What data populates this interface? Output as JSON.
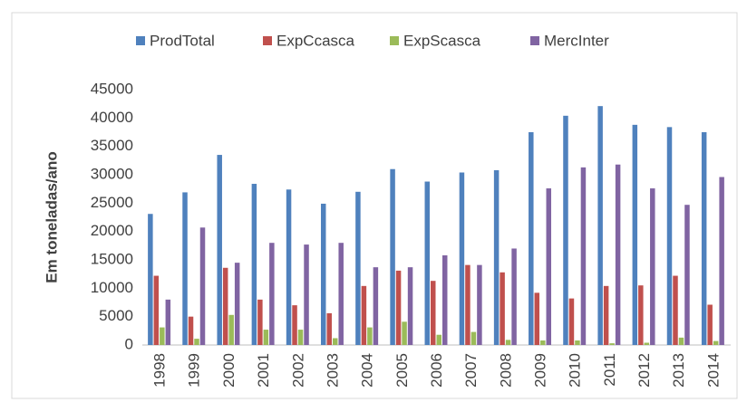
{
  "chart_data": {
    "type": "bar",
    "y_label": "Em toneladas/ano",
    "categories": [
      "1998",
      "1999",
      "2000",
      "2001",
      "2002",
      "2003",
      "2004",
      "2005",
      "2006",
      "2007",
      "2008",
      "2009",
      "2010",
      "2011",
      "2012",
      "2013",
      "2014"
    ],
    "series": [
      {
        "name": "ProdTotal",
        "color": "#4f81bd",
        "values": [
          23100,
          26900,
          33500,
          28400,
          27400,
          24900,
          27000,
          31000,
          28800,
          30400,
          30800,
          37500,
          40400,
          42100,
          38800,
          38400,
          37500
        ]
      },
      {
        "name": "ExpCcasca",
        "color": "#c0504d",
        "values": [
          12200,
          5000,
          13600,
          8000,
          7000,
          5600,
          10400,
          13100,
          11300,
          14100,
          12800,
          9200,
          8200,
          10400,
          10500,
          12200,
          7100
        ]
      },
      {
        "name": "ExpScasca",
        "color": "#9bbb59",
        "values": [
          3100,
          1100,
          5300,
          2700,
          2700,
          1200,
          3100,
          4100,
          1800,
          2300,
          900,
          800,
          800,
          300,
          400,
          1300,
          700
        ]
      },
      {
        "name": "MercInter",
        "color": "#8064a2",
        "values": [
          8000,
          20700,
          14500,
          18000,
          17700,
          18000,
          13700,
          13700,
          15800,
          14100,
          17000,
          27600,
          31300,
          31800,
          27600,
          24700,
          29600
        ]
      }
    ],
    "ylim": [
      0,
      45000
    ],
    "yticks": [
      0,
      5000,
      10000,
      15000,
      20000,
      25000,
      30000,
      35000,
      40000,
      45000
    ],
    "grid": false,
    "legend": "top"
  }
}
